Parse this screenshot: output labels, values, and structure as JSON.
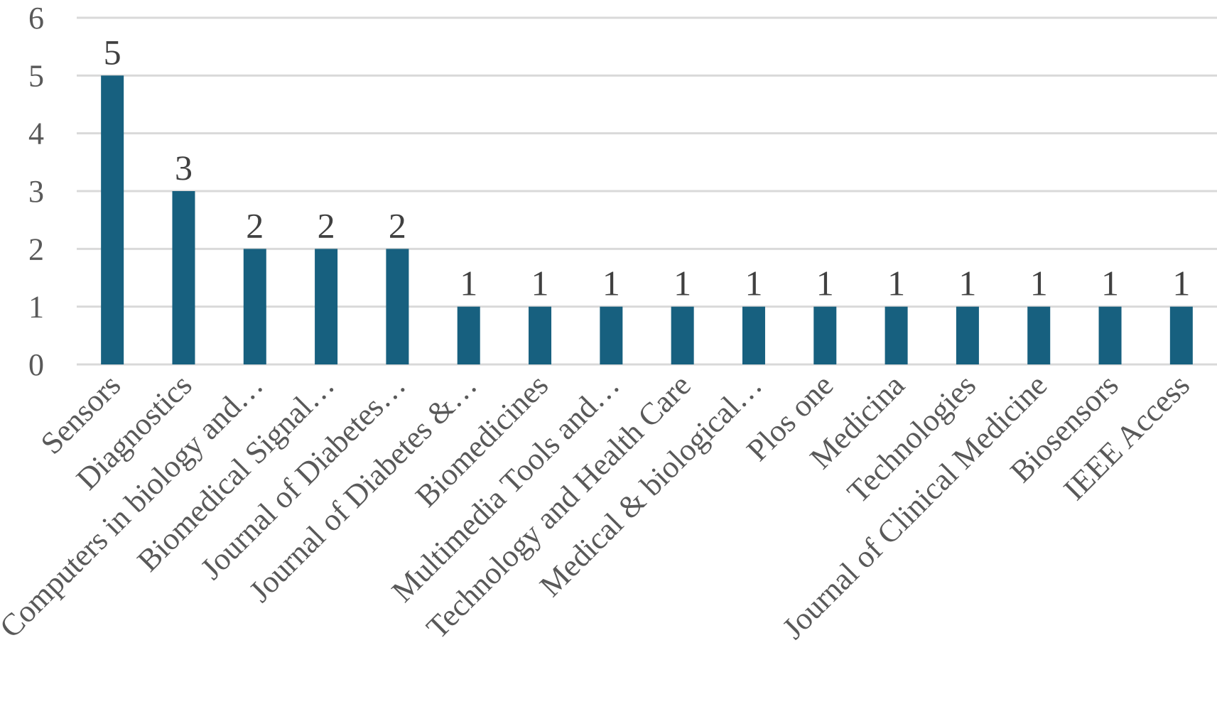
{
  "chart_data": {
    "type": "bar",
    "title": "",
    "xlabel": "",
    "ylabel": "",
    "ylim": [
      0,
      6
    ],
    "yticks": [
      0,
      1,
      2,
      3,
      4,
      5,
      6
    ],
    "grid": true,
    "legend": "none",
    "bar_color": "#17607F",
    "categories": [
      "Sensors",
      "Diagnostics",
      "Computers in biology and…",
      "Biomedical Signal…",
      "Journal of Diabetes…",
      "Journal of Diabetes &…",
      "Biomedicines",
      "Multimedia Tools and…",
      "Technology and Health Care",
      "Medical & biological…",
      "Plos one",
      "Medicina",
      "Technologies",
      "Journal of Clinical Medicine",
      "Biosensors",
      "IEEE Access"
    ],
    "values": [
      5,
      3,
      2,
      2,
      2,
      1,
      1,
      1,
      1,
      1,
      1,
      1,
      1,
      1,
      1,
      1
    ],
    "data_labels": [
      "5",
      "3",
      "2",
      "2",
      "2",
      "1",
      "1",
      "1",
      "1",
      "1",
      "1",
      "1",
      "1",
      "1",
      "1",
      "1"
    ]
  }
}
